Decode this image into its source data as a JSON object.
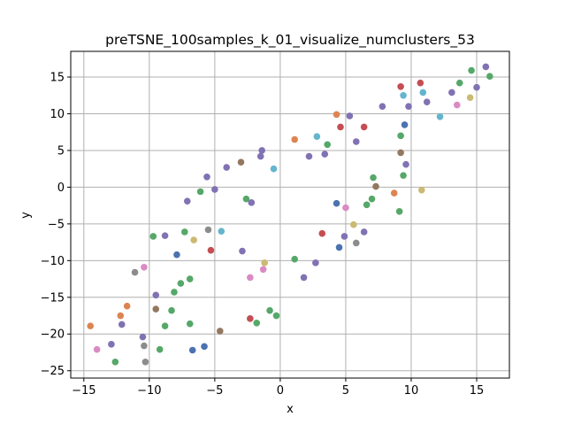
{
  "chart_data": {
    "type": "scatter",
    "title": "preTSNE_100samples_k_01_visualize_numclusters_53",
    "xlabel": "x",
    "ylabel": "y",
    "xlim": [
      -16,
      17.5
    ],
    "ylim": [
      -26,
      18.5
    ],
    "xticks": [
      -15,
      -10,
      -5,
      0,
      5,
      10,
      15
    ],
    "yticks": [
      -25,
      -20,
      -15,
      -10,
      -5,
      0,
      5,
      10,
      15
    ],
    "grid": true,
    "points": [
      {
        "x": 15.7,
        "y": 16.4,
        "color": "#8172b3"
      },
      {
        "x": 16.0,
        "y": 15.1,
        "color": "#55a868"
      },
      {
        "x": 14.6,
        "y": 15.9,
        "color": "#55a868"
      },
      {
        "x": 13.7,
        "y": 14.2,
        "color": "#55a868"
      },
      {
        "x": 15.0,
        "y": 13.6,
        "color": "#8172b3"
      },
      {
        "x": 10.7,
        "y": 14.2,
        "color": "#c44e52"
      },
      {
        "x": 9.2,
        "y": 13.7,
        "color": "#c44e52"
      },
      {
        "x": 9.4,
        "y": 12.5,
        "color": "#64b5cd"
      },
      {
        "x": 10.9,
        "y": 12.9,
        "color": "#64b5cd"
      },
      {
        "x": 13.1,
        "y": 12.9,
        "color": "#8172b3"
      },
      {
        "x": 14.5,
        "y": 12.2,
        "color": "#ccb974"
      },
      {
        "x": 11.2,
        "y": 11.6,
        "color": "#8172b3"
      },
      {
        "x": 13.5,
        "y": 11.2,
        "color": "#da8bc3"
      },
      {
        "x": 9.8,
        "y": 11.0,
        "color": "#8172b3"
      },
      {
        "x": 7.8,
        "y": 11.0,
        "color": "#8172b3"
      },
      {
        "x": 12.2,
        "y": 9.6,
        "color": "#64b5cd"
      },
      {
        "x": 4.3,
        "y": 9.9,
        "color": "#dd8452"
      },
      {
        "x": 5.3,
        "y": 9.7,
        "color": "#8172b3"
      },
      {
        "x": 9.5,
        "y": 8.5,
        "color": "#4c72b0"
      },
      {
        "x": 4.6,
        "y": 8.2,
        "color": "#c44e52"
      },
      {
        "x": 6.4,
        "y": 8.2,
        "color": "#c44e52"
      },
      {
        "x": 2.8,
        "y": 6.9,
        "color": "#64b5cd"
      },
      {
        "x": 9.2,
        "y": 7.0,
        "color": "#55a868"
      },
      {
        "x": 1.1,
        "y": 6.5,
        "color": "#dd8452"
      },
      {
        "x": 5.8,
        "y": 6.2,
        "color": "#8172b3"
      },
      {
        "x": 3.6,
        "y": 5.8,
        "color": "#55a868"
      },
      {
        "x": 9.2,
        "y": 4.7,
        "color": "#937860"
      },
      {
        "x": 2.2,
        "y": 4.2,
        "color": "#8172b3"
      },
      {
        "x": 3.4,
        "y": 4.5,
        "color": "#8172b3"
      },
      {
        "x": -1.4,
        "y": 5.0,
        "color": "#8172b3"
      },
      {
        "x": -1.5,
        "y": 4.2,
        "color": "#8172b3"
      },
      {
        "x": -3.0,
        "y": 3.4,
        "color": "#937860"
      },
      {
        "x": -4.1,
        "y": 2.7,
        "color": "#8172b3"
      },
      {
        "x": -0.5,
        "y": 2.5,
        "color": "#64b5cd"
      },
      {
        "x": 9.6,
        "y": 3.1,
        "color": "#8172b3"
      },
      {
        "x": -5.6,
        "y": 1.4,
        "color": "#8172b3"
      },
      {
        "x": 9.4,
        "y": 1.6,
        "color": "#55a868"
      },
      {
        "x": 7.1,
        "y": 1.3,
        "color": "#55a868"
      },
      {
        "x": 7.3,
        "y": 0.1,
        "color": "#937860"
      },
      {
        "x": -5.0,
        "y": -0.3,
        "color": "#8172b3"
      },
      {
        "x": -6.1,
        "y": -0.6,
        "color": "#55a868"
      },
      {
        "x": 10.8,
        "y": -0.4,
        "color": "#ccb974"
      },
      {
        "x": 8.7,
        "y": -0.8,
        "color": "#dd8452"
      },
      {
        "x": -2.6,
        "y": -1.6,
        "color": "#55a868"
      },
      {
        "x": -7.1,
        "y": -1.9,
        "color": "#8172b3"
      },
      {
        "x": -2.2,
        "y": -2.1,
        "color": "#8172b3"
      },
      {
        "x": 7.0,
        "y": -1.6,
        "color": "#55a868"
      },
      {
        "x": 6.6,
        "y": -2.4,
        "color": "#55a868"
      },
      {
        "x": 4.3,
        "y": -2.2,
        "color": "#4c72b0"
      },
      {
        "x": 5.0,
        "y": -2.8,
        "color": "#da8bc3"
      },
      {
        "x": 9.1,
        "y": -3.3,
        "color": "#55a868"
      },
      {
        "x": 5.6,
        "y": -5.1,
        "color": "#ccb974"
      },
      {
        "x": -5.5,
        "y": -5.8,
        "color": "#8c8c8c"
      },
      {
        "x": -4.5,
        "y": -6.0,
        "color": "#64b5cd"
      },
      {
        "x": -7.3,
        "y": -6.1,
        "color": "#55a868"
      },
      {
        "x": 6.4,
        "y": -6.1,
        "color": "#8172b3"
      },
      {
        "x": 3.2,
        "y": -6.3,
        "color": "#c44e52"
      },
      {
        "x": 4.9,
        "y": -6.7,
        "color": "#8172b3"
      },
      {
        "x": -9.7,
        "y": -6.7,
        "color": "#55a868"
      },
      {
        "x": -8.8,
        "y": -6.6,
        "color": "#8172b3"
      },
      {
        "x": -6.6,
        "y": -7.2,
        "color": "#ccb974"
      },
      {
        "x": 5.8,
        "y": -7.6,
        "color": "#8c8c8c"
      },
      {
        "x": 4.5,
        "y": -8.2,
        "color": "#4c72b0"
      },
      {
        "x": -5.3,
        "y": -8.6,
        "color": "#c44e52"
      },
      {
        "x": -2.9,
        "y": -8.7,
        "color": "#8172b3"
      },
      {
        "x": -7.9,
        "y": -9.2,
        "color": "#4c72b0"
      },
      {
        "x": 1.1,
        "y": -9.8,
        "color": "#55a868"
      },
      {
        "x": -1.2,
        "y": -10.3,
        "color": "#ccb974"
      },
      {
        "x": 2.7,
        "y": -10.3,
        "color": "#8172b3"
      },
      {
        "x": -10.4,
        "y": -10.9,
        "color": "#da8bc3"
      },
      {
        "x": -1.3,
        "y": -11.2,
        "color": "#da8bc3"
      },
      {
        "x": -11.1,
        "y": -11.6,
        "color": "#8c8c8c"
      },
      {
        "x": 1.8,
        "y": -12.3,
        "color": "#8172b3"
      },
      {
        "x": -2.3,
        "y": -12.3,
        "color": "#da8bc3"
      },
      {
        "x": -6.9,
        "y": -12.5,
        "color": "#55a868"
      },
      {
        "x": -7.6,
        "y": -13.1,
        "color": "#55a868"
      },
      {
        "x": -8.1,
        "y": -14.3,
        "color": "#55a868"
      },
      {
        "x": -9.5,
        "y": -14.7,
        "color": "#8172b3"
      },
      {
        "x": -11.7,
        "y": -16.2,
        "color": "#dd8452"
      },
      {
        "x": -9.5,
        "y": -16.6,
        "color": "#937860"
      },
      {
        "x": -8.3,
        "y": -16.8,
        "color": "#55a868"
      },
      {
        "x": -0.8,
        "y": -16.8,
        "color": "#55a868"
      },
      {
        "x": -12.2,
        "y": -17.5,
        "color": "#dd8452"
      },
      {
        "x": -0.3,
        "y": -17.5,
        "color": "#55a868"
      },
      {
        "x": -2.3,
        "y": -17.9,
        "color": "#c44e52"
      },
      {
        "x": -1.8,
        "y": -18.5,
        "color": "#55a868"
      },
      {
        "x": -6.9,
        "y": -18.6,
        "color": "#55a868"
      },
      {
        "x": -12.1,
        "y": -18.7,
        "color": "#8172b3"
      },
      {
        "x": -8.8,
        "y": -18.9,
        "color": "#55a868"
      },
      {
        "x": -14.5,
        "y": -18.9,
        "color": "#dd8452"
      },
      {
        "x": -4.6,
        "y": -19.6,
        "color": "#937860"
      },
      {
        "x": -10.5,
        "y": -20.4,
        "color": "#8172b3"
      },
      {
        "x": -12.9,
        "y": -21.4,
        "color": "#8172b3"
      },
      {
        "x": -10.4,
        "y": -21.6,
        "color": "#8c8c8c"
      },
      {
        "x": -5.8,
        "y": -21.7,
        "color": "#4c72b0"
      },
      {
        "x": -6.7,
        "y": -22.2,
        "color": "#4c72b0"
      },
      {
        "x": -9.2,
        "y": -22.1,
        "color": "#55a868"
      },
      {
        "x": -14.0,
        "y": -22.1,
        "color": "#da8bc3"
      },
      {
        "x": -12.6,
        "y": -23.8,
        "color": "#55a868"
      },
      {
        "x": -10.3,
        "y": -23.8,
        "color": "#8c8c8c"
      }
    ]
  }
}
